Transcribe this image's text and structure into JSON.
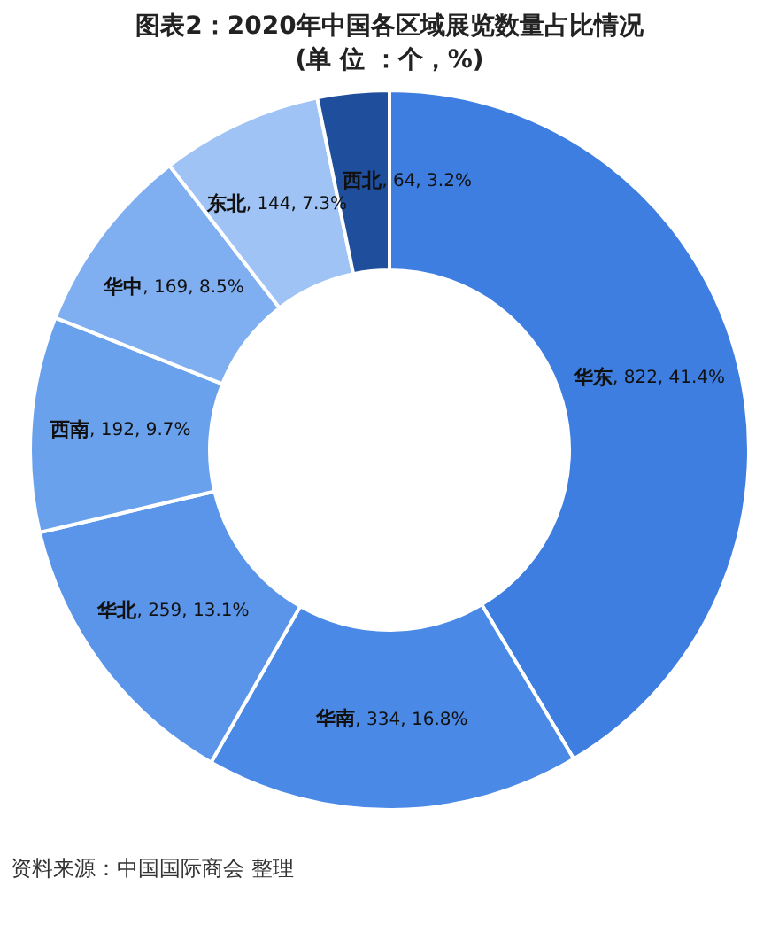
{
  "chart_data": {
    "type": "donut",
    "title": "图表2：2020年中国各区域展览数量占比情况(单 位 ：个，%)",
    "categories": [
      "华东",
      "华南",
      "华北",
      "西南",
      "华中",
      "东北",
      "西北"
    ],
    "values": [
      822,
      334,
      259,
      192,
      169,
      144,
      64
    ],
    "value_labels": [
      ", 822, 41.4%",
      ", 334, 16.8%",
      ", 259, 13.1%",
      ", 192, 9.7%",
      ", 169, 8.5%",
      ", 144, 7.3%",
      ", 64, 3.2%"
    ],
    "colors": [
      "#3d7ee0",
      "#4a89e6",
      "#5a95e9",
      "#6aa1ec",
      "#7faff0",
      "#9fc3f4",
      "#1f4f9c"
    ],
    "legend": false,
    "annotations": [
      "资料来源：中国国际商会 整理"
    ]
  }
}
